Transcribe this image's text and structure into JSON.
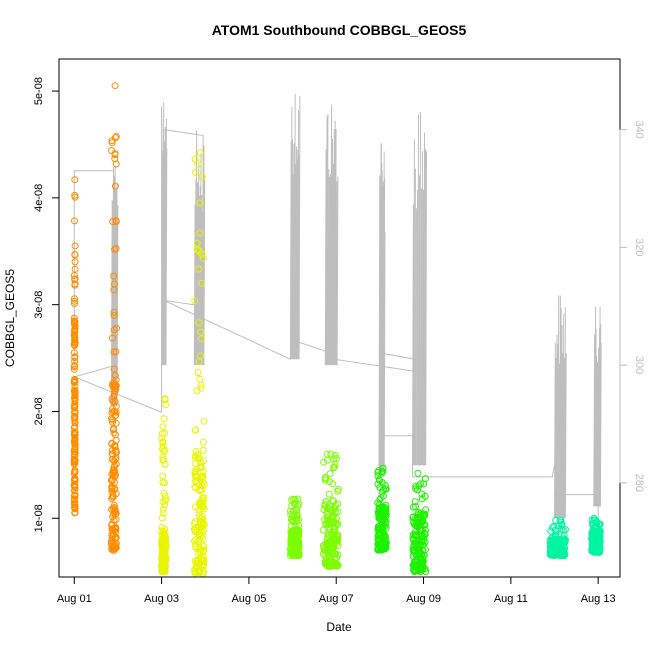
{
  "chart_data": {
    "type": "scatter",
    "title": "ATOM1 Southbound COBBGL_GEOS5",
    "xlabel": "Date",
    "ylabel": "COBBGL_GEOS5",
    "x_ticks": [
      "Aug 01",
      "Aug 03",
      "Aug 05",
      "Aug 07",
      "Aug 09",
      "Aug 11",
      "Aug 13"
    ],
    "x_tick_days": [
      1,
      3,
      5,
      7,
      9,
      11,
      13
    ],
    "xlim": [
      0.65,
      13.5
    ],
    "ylim": [
      4.5e-09,
      5.3e-08
    ],
    "y_ticks": [
      "1e-08",
      "2e-08",
      "3e-08",
      "4e-08",
      "5e-08"
    ],
    "y_tick_values": [
      1e-08,
      2e-08,
      3e-08,
      4e-08,
      5e-08
    ],
    "y2_ticks": [
      "280",
      "300",
      "320",
      "340"
    ],
    "y2_tick_values": [
      280,
      300,
      320,
      340
    ],
    "y2lim": [
      264,
      352
    ],
    "grid": false,
    "scatter_series": [
      {
        "day_start": 1.0,
        "day_end": 1.02,
        "color": "#FF8C00",
        "min": 1.05e-08,
        "max": 4.17e-08,
        "median": 2.2e-08
      },
      {
        "day_start": 1.85,
        "day_end": 1.97,
        "color": "#FF8C00",
        "min": 7e-09,
        "max": 5.05e-08,
        "median": 1.7e-08
      },
      {
        "day_start": 3.0,
        "day_end": 3.1,
        "color": "#E8F500",
        "min": 5e-09,
        "max": 2.12e-08,
        "median": 7e-09
      },
      {
        "day_start": 3.75,
        "day_end": 3.98,
        "color": "#E8F500",
        "min": 4.8e-09,
        "max": 4.42e-08,
        "median": 1.2e-08
      },
      {
        "day_start": 5.95,
        "day_end": 6.15,
        "color": "#7CFC00",
        "min": 6.5e-09,
        "max": 1.18e-08,
        "median": 8e-09
      },
      {
        "day_start": 6.7,
        "day_end": 7.05,
        "color": "#7CFC00",
        "min": 5.5e-09,
        "max": 1.6e-08,
        "median": 9e-09
      },
      {
        "day_start": 7.95,
        "day_end": 8.15,
        "color": "#1EF000",
        "min": 7e-09,
        "max": 1.47e-08,
        "median": 9.5e-09
      },
      {
        "day_start": 8.75,
        "day_end": 9.05,
        "color": "#1EF000",
        "min": 5e-09,
        "max": 1.42e-08,
        "median": 8.5e-09
      },
      {
        "day_start": 11.9,
        "day_end": 12.25,
        "color": "#00F5A0",
        "min": 6.5e-09,
        "max": 9.8e-09,
        "median": 7.5e-09
      },
      {
        "day_start": 12.85,
        "day_end": 13.05,
        "color": "#00F5A0",
        "min": 6.8e-09,
        "max": 1e-08,
        "median": 8e-09
      }
    ],
    "altitude_line": {
      "color": "#bebebe",
      "points": [
        [
          1.0,
          299
        ],
        [
          1.0,
          333
        ],
        [
          1.9,
          333
        ],
        [
          1.9,
          329
        ],
        [
          1.95,
          295
        ],
        [
          1.95,
          300
        ],
        [
          1.0,
          298
        ],
        [
          3.0,
          292
        ],
        [
          3.0,
          344
        ],
        [
          3.05,
          311
        ],
        [
          3.05,
          340
        ],
        [
          3.95,
          339
        ],
        [
          3.95,
          310
        ],
        [
          3.05,
          311
        ],
        [
          5.95,
          301
        ],
        [
          6.0,
          305
        ],
        [
          6.0,
          318
        ],
        [
          6.1,
          318
        ],
        [
          6.1,
          304
        ],
        [
          6.9,
          302
        ],
        [
          6.95,
          308
        ],
        [
          6.95,
          316
        ],
        [
          6.95,
          301
        ],
        [
          8.75,
          299
        ],
        [
          8.9,
          299
        ],
        [
          8.8,
          301
        ],
        [
          8.05,
          302
        ],
        [
          8.05,
          322
        ],
        [
          8.05,
          288
        ],
        [
          8.75,
          288
        ],
        [
          8.75,
          281
        ],
        [
          11.95,
          281
        ],
        [
          12.0,
          283
        ],
        [
          12.1,
          283
        ],
        [
          12.0,
          278
        ],
        [
          12.95,
          278
        ],
        [
          13.0,
          284
        ],
        [
          13.0,
          272
        ]
      ],
      "spikes": [
        {
          "day_start": 5.95,
          "day_end": 6.15,
          "low": 301,
          "high": 349
        },
        {
          "day_start": 6.75,
          "day_end": 7.02,
          "low": 300,
          "high": 346
        },
        {
          "day_start": 7.98,
          "day_end": 8.1,
          "low": 281,
          "high": 341
        },
        {
          "day_start": 8.75,
          "day_end": 9.05,
          "low": 283,
          "high": 345
        },
        {
          "day_start": 1.85,
          "day_end": 1.98,
          "low": 293,
          "high": 334
        },
        {
          "day_start": 3.0,
          "day_end": 3.1,
          "low": 300,
          "high": 345
        },
        {
          "day_start": 3.75,
          "day_end": 3.97,
          "low": 300,
          "high": 340
        },
        {
          "day_start": 12.0,
          "day_end": 12.25,
          "low": 274,
          "high": 313
        },
        {
          "day_start": 12.9,
          "day_end": 13.05,
          "low": 276,
          "high": 310
        }
      ]
    }
  }
}
